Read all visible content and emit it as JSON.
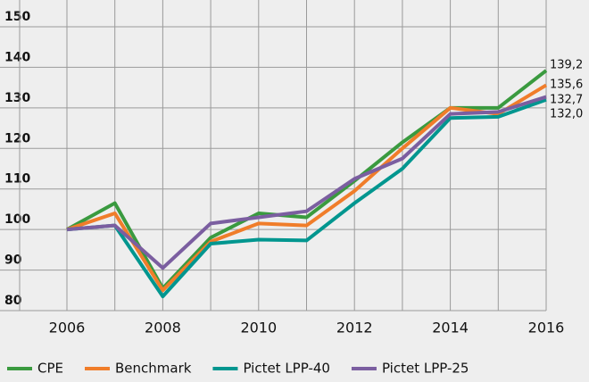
{
  "chart_data": {
    "type": "line",
    "x": [
      2006,
      2007,
      2008,
      2009,
      2010,
      2011,
      2012,
      2013,
      2014,
      2015,
      2016
    ],
    "xlim": [
      2006,
      2016
    ],
    "xticks": [
      2006,
      2008,
      2010,
      2012,
      2014,
      2016
    ],
    "ylim": [
      80,
      150
    ],
    "yticks": [
      80,
      90,
      100,
      110,
      120,
      130,
      140,
      150
    ],
    "grid": true,
    "legend": "bottom",
    "series": [
      {
        "name": "CPE",
        "color": "#3a9a3f",
        "values": [
          100,
          106.5,
          85.5,
          98,
          104,
          103,
          112,
          121.5,
          130,
          130,
          139.2
        ],
        "value_labels": [
          null,
          null,
          null,
          null,
          null,
          null,
          null,
          null,
          null,
          null,
          "139,2"
        ]
      },
      {
        "name": "Benchmark",
        "color": "#f07d2a",
        "values": [
          100,
          104,
          85,
          97,
          101.5,
          101,
          109.5,
          120,
          130,
          128.5,
          135.6
        ],
        "value_labels": [
          null,
          null,
          null,
          null,
          null,
          null,
          null,
          null,
          null,
          null,
          "135,6"
        ]
      },
      {
        "name": "Pictet LPP-40",
        "color": "#00968f",
        "values": [
          100,
          101,
          83.5,
          96.5,
          97.5,
          97.3,
          106.5,
          115,
          127.5,
          127.8,
          132.0
        ],
        "value_labels": [
          null,
          null,
          null,
          null,
          null,
          null,
          null,
          null,
          null,
          null,
          "132,0"
        ]
      },
      {
        "name": "Pictet LPP-25",
        "color": "#7b5ea0",
        "values": [
          100,
          101,
          90.5,
          101.5,
          103,
          104.5,
          112.5,
          117.5,
          128.5,
          129,
          132.7
        ],
        "value_labels": [
          null,
          null,
          null,
          null,
          null,
          null,
          null,
          null,
          null,
          null,
          "132,7"
        ]
      }
    ]
  }
}
